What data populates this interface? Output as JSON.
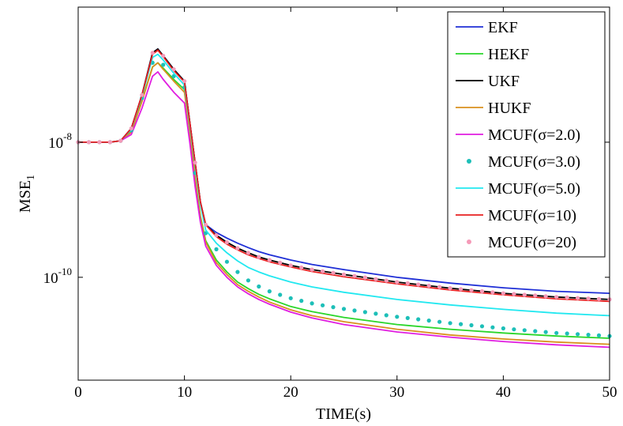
{
  "chart_data": {
    "type": "line",
    "title": "",
    "xlabel": "TIME(s)",
    "ylabel_main": "MSE",
    "ylabel_sub": "1",
    "xlim": [
      0,
      50
    ],
    "ylim": [
      3e-12,
      1e-06
    ],
    "yscale": "log",
    "xticks": [
      {
        "value": 0,
        "label": "0"
      },
      {
        "value": 10,
        "label": "10"
      },
      {
        "value": 20,
        "label": "20"
      },
      {
        "value": 30,
        "label": "30"
      },
      {
        "value": 40,
        "label": "40"
      },
      {
        "value": 50,
        "label": "50"
      }
    ],
    "yticks": [
      {
        "value": 1e-08,
        "base": "10",
        "exp": "-8"
      },
      {
        "value": 1e-10,
        "base": "10",
        "exp": "-10"
      }
    ],
    "grid": false,
    "legend_position": "top-right",
    "x": [
      0,
      1,
      2,
      3,
      4,
      5,
      6,
      7,
      7.5,
      8,
      9,
      10,
      10.5,
      11,
      11.5,
      12,
      13,
      14,
      15,
      16,
      17,
      18,
      20,
      22,
      25,
      30,
      35,
      40,
      45,
      50
    ],
    "series": [
      {
        "name": "EKF",
        "color": "#1f2fd6",
        "style": "line",
        "values": [
          1e-08,
          1e-08,
          1e-08,
          1e-08,
          1.05e-08,
          1.6e-08,
          5e-08,
          2.1e-07,
          2.4e-07,
          1.9e-07,
          1.2e-07,
          8e-08,
          2e-08,
          5e-09,
          1.3e-09,
          6e-10,
          4.6e-10,
          3.8e-10,
          3.2e-10,
          2.75e-10,
          2.4e-10,
          2.15e-10,
          1.8e-10,
          1.55e-10,
          1.3e-10,
          1e-10,
          8.2e-11,
          7e-11,
          6.2e-11,
          5.8e-11
        ]
      },
      {
        "name": "HEKF",
        "color": "#2ad62a",
        "style": "line",
        "values": [
          1e-08,
          1e-08,
          1e-08,
          1e-08,
          1.05e-08,
          1.5e-08,
          4.2e-08,
          1.3e-07,
          1.5e-07,
          1.25e-07,
          8.5e-08,
          6e-08,
          1.5e-08,
          3e-09,
          8e-10,
          3.5e-10,
          1.8e-10,
          1.2e-10,
          8.5e-11,
          6.8e-11,
          5.6e-11,
          4.8e-11,
          3.7e-11,
          3.1e-11,
          2.55e-11,
          2e-11,
          1.7e-11,
          1.5e-11,
          1.35e-11,
          1.25e-11
        ]
      },
      {
        "name": "UKF",
        "color": "#000000",
        "style": "line",
        "values": [
          1e-08,
          1e-08,
          1e-08,
          1e-08,
          1.05e-08,
          1.6e-08,
          5e-08,
          2.1e-07,
          2.4e-07,
          1.9e-07,
          1.2e-07,
          8e-08,
          2e-08,
          5e-09,
          1.3e-09,
          6e-10,
          4.2e-10,
          3.3e-10,
          2.7e-10,
          2.3e-10,
          2e-10,
          1.8e-10,
          1.5e-10,
          1.3e-10,
          1.1e-10,
          8.5e-11,
          6.9e-11,
          5.8e-11,
          5.1e-11,
          4.7e-11
        ]
      },
      {
        "name": "HUKF",
        "color": "#d9901f",
        "style": "line",
        "values": [
          1e-08,
          1e-08,
          1e-08,
          1e-08,
          1.05e-08,
          1.4e-08,
          4e-08,
          1.3e-07,
          1.5e-07,
          1.2e-07,
          8e-08,
          5.5e-08,
          1.4e-08,
          2.8e-09,
          7.5e-10,
          3.3e-10,
          1.65e-10,
          1.1e-10,
          7.8e-11,
          6.2e-11,
          5.1e-11,
          4.3e-11,
          3.3e-11,
          2.7e-11,
          2.2e-11,
          1.7e-11,
          1.4e-11,
          1.22e-11,
          1.1e-11,
          1.02e-11
        ]
      },
      {
        "name": "MCUF(σ=2.0)",
        "color": "#e01de0",
        "style": "line",
        "values": [
          1e-08,
          1e-08,
          1e-08,
          1e-08,
          1.05e-08,
          1.3e-08,
          3.2e-08,
          9.5e-08,
          1.1e-07,
          8.5e-08,
          5.5e-08,
          3.8e-08,
          1e-08,
          2.2e-09,
          6.5e-10,
          2.9e-10,
          1.5e-10,
          1e-10,
          7.2e-11,
          5.7e-11,
          4.7e-11,
          4e-11,
          3.05e-11,
          2.5e-11,
          2e-11,
          1.55e-11,
          1.3e-11,
          1.12e-11,
          1e-11,
          9.2e-12
        ]
      },
      {
        "name": "MCUF(σ=3.0)",
        "color": "#1dbfb8",
        "style": "dots",
        "values": [
          1e-08,
          1e-08,
          1e-08,
          1e-08,
          1.05e-08,
          1.5e-08,
          4.5e-08,
          1.5e-07,
          1.7e-07,
          1.4e-07,
          9.5e-08,
          6.5e-08,
          1.6e-08,
          3.5e-09,
          1.1e-09,
          4.5e-10,
          2.6e-10,
          1.7e-10,
          1.2e-10,
          9e-11,
          7.3e-11,
          6.2e-11,
          4.9e-11,
          4.1e-11,
          3.4e-11,
          2.6e-11,
          2.1e-11,
          1.75e-11,
          1.5e-11,
          1.35e-11
        ]
      },
      {
        "name": "MCUF(σ=5.0)",
        "color": "#22e8f0",
        "style": "line",
        "values": [
          1e-08,
          1e-08,
          1e-08,
          1e-08,
          1.05e-08,
          1.55e-08,
          4.8e-08,
          1.8e-07,
          2e-07,
          1.65e-07,
          1.05e-07,
          7e-08,
          1.8e-08,
          4.5e-09,
          1.2e-09,
          5e-10,
          3.2e-10,
          2.3e-10,
          1.75e-10,
          1.4e-10,
          1.2e-10,
          1.05e-10,
          8.5e-11,
          7.2e-11,
          6e-11,
          4.7e-11,
          3.9e-11,
          3.35e-11,
          2.95e-11,
          2.7e-11
        ]
      },
      {
        "name": "MCUF(σ=10)",
        "color": "#e82020",
        "style": "line",
        "values": [
          1e-08,
          1e-08,
          1e-08,
          1e-08,
          1.05e-08,
          1.6e-08,
          5e-08,
          2e-07,
          2.3e-07,
          1.85e-07,
          1.15e-07,
          7.8e-08,
          2e-08,
          5e-09,
          1.3e-09,
          6e-10,
          4e-10,
          3.1e-10,
          2.55e-10,
          2.15e-10,
          1.9e-10,
          1.7e-10,
          1.42e-10,
          1.22e-10,
          1.02e-10,
          8e-11,
          6.5e-11,
          5.5e-11,
          4.8e-11,
          4.4e-11
        ]
      },
      {
        "name": "MCUF(σ=20)",
        "color": "#f59ab8",
        "style": "dots",
        "values": [
          1e-08,
          1e-08,
          1e-08,
          1e-08,
          1.05e-08,
          1.6e-08,
          5e-08,
          2.1e-07,
          2.4e-07,
          1.9e-07,
          1.2e-07,
          8e-08,
          2e-08,
          5e-09,
          1.3e-09,
          6e-10,
          4.2e-10,
          3.3e-10,
          2.7e-10,
          2.3e-10,
          2e-10,
          1.8e-10,
          1.5e-10,
          1.3e-10,
          1.1e-10,
          8.5e-11,
          6.9e-11,
          5.8e-11,
          5.1e-11,
          4.7e-11
        ]
      }
    ]
  }
}
